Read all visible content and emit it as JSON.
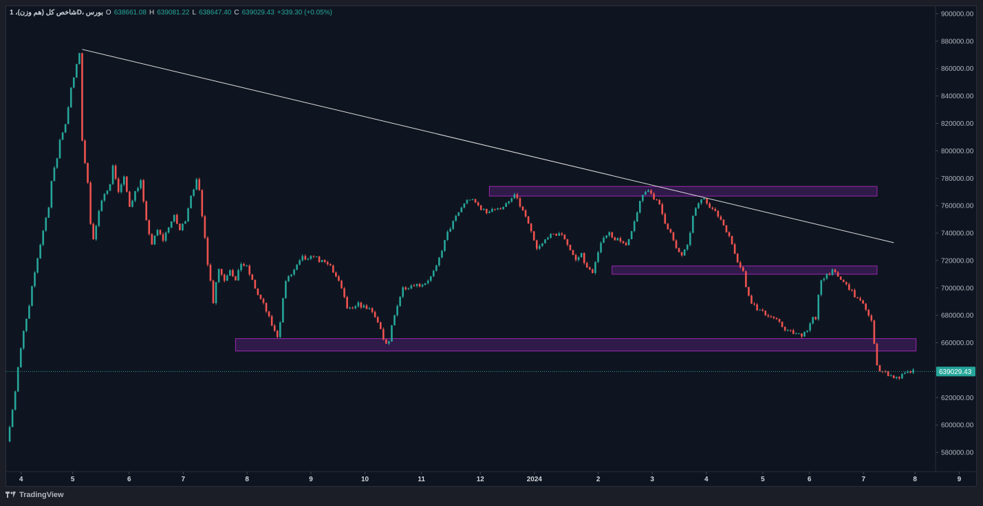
{
  "header": {
    "symbol": "شاخص کل (هم وزن)، 1D، بورس",
    "open_label": "O",
    "open": "638661.08",
    "high_label": "H",
    "high": "639081.22",
    "low_label": "L",
    "low": "638647.40",
    "close_label": "C",
    "close": "639029.43",
    "change": "+339.30 (+0.05%)"
  },
  "footer": {
    "brand": "TradingView"
  },
  "colors": {
    "up": "#26a69a",
    "down": "#ef5350",
    "zone_fill": "#4a1f6e",
    "zone_border": "#9c27b0",
    "trendline": "#e0e0e0",
    "price_tag": "#26a69a"
  },
  "chart_data": {
    "type": "candlestick",
    "x_ticks": [
      "4",
      "5",
      "6",
      "7",
      "8",
      "9",
      "10",
      "11",
      "12",
      "2024",
      "2",
      "3",
      "4",
      "5",
      "6",
      "7",
      "8",
      "9"
    ],
    "y_ticks": [
      "900000.00",
      "880000.00",
      "860000.00",
      "840000.00",
      "820000.00",
      "800000.00",
      "780000.00",
      "760000.00",
      "740000.00",
      "720000.00",
      "700000.00",
      "680000.00",
      "660000.00",
      "640000.00",
      "620000.00",
      "600000.00",
      "580000.00"
    ],
    "ylim": [
      566000,
      906000
    ],
    "last_price": 639029.43,
    "last_price_label": "639029.43",
    "path_points": [
      [
        0,
        588000
      ],
      [
        2,
        612000
      ],
      [
        3,
        625000
      ],
      [
        4,
        642000
      ],
      [
        6,
        668000
      ],
      [
        8,
        686000
      ],
      [
        9,
        700000
      ],
      [
        11,
        722000
      ],
      [
        13,
        742000
      ],
      [
        15,
        760000
      ],
      [
        16,
        778000
      ],
      [
        18,
        795000
      ],
      [
        19,
        808000
      ],
      [
        21,
        820000
      ],
      [
        23,
        845000
      ],
      [
        25,
        862000
      ],
      [
        26,
        872000
      ],
      [
        27,
        808000
      ],
      [
        28,
        790000
      ],
      [
        29,
        778000
      ],
      [
        30,
        748000
      ],
      [
        31,
        735000
      ],
      [
        33,
        755000
      ],
      [
        35,
        770000
      ],
      [
        37,
        775000
      ],
      [
        38,
        790000
      ],
      [
        40,
        770000
      ],
      [
        42,
        780000
      ],
      [
        44,
        760000
      ],
      [
        46,
        770000
      ],
      [
        48,
        778000
      ],
      [
        49,
        762000
      ],
      [
        50,
        748000
      ],
      [
        52,
        732000
      ],
      [
        54,
        742000
      ],
      [
        56,
        735000
      ],
      [
        58,
        745000
      ],
      [
        60,
        752000
      ],
      [
        62,
        742000
      ],
      [
        64,
        750000
      ],
      [
        66,
        768000
      ],
      [
        68,
        778000
      ],
      [
        69,
        770000
      ],
      [
        70,
        752000
      ],
      [
        71,
        738000
      ],
      [
        72,
        718000
      ],
      [
        73,
        705000
      ],
      [
        74,
        690000
      ],
      [
        75,
        705000
      ],
      [
        76,
        714000
      ],
      [
        78,
        706000
      ],
      [
        80,
        714000
      ],
      [
        82,
        705000
      ],
      [
        84,
        718000
      ],
      [
        86,
        715000
      ],
      [
        88,
        705000
      ],
      [
        90,
        695000
      ],
      [
        92,
        688000
      ],
      [
        94,
        678000
      ],
      [
        96,
        668000
      ],
      [
        97,
        665000
      ],
      [
        98,
        676000
      ],
      [
        99,
        692000
      ],
      [
        100,
        705000
      ],
      [
        102,
        710000
      ],
      [
        104,
        716000
      ],
      [
        106,
        722000
      ],
      [
        108,
        720000
      ],
      [
        110,
        724000
      ],
      [
        112,
        720000
      ],
      [
        114,
        718000
      ],
      [
        116,
        716000
      ],
      [
        118,
        708000
      ],
      [
        120,
        700000
      ],
      [
        122,
        685000
      ],
      [
        124,
        684000
      ],
      [
        126,
        688000
      ],
      [
        128,
        686000
      ],
      [
        130,
        685000
      ],
      [
        132,
        680000
      ],
      [
        134,
        670000
      ],
      [
        135,
        662000
      ],
      [
        136,
        658000
      ],
      [
        137,
        660000
      ],
      [
        138,
        672000
      ],
      [
        140,
        688000
      ],
      [
        142,
        700000
      ],
      [
        144,
        701000
      ],
      [
        146,
        703000
      ],
      [
        148,
        702000
      ],
      [
        150,
        704000
      ],
      [
        152,
        708000
      ],
      [
        154,
        715000
      ],
      [
        156,
        728000
      ],
      [
        158,
        740000
      ],
      [
        160,
        748000
      ],
      [
        162,
        755000
      ],
      [
        164,
        762000
      ],
      [
        166,
        765000
      ],
      [
        168,
        762000
      ],
      [
        170,
        758000
      ],
      [
        172,
        755000
      ],
      [
        174,
        758000
      ],
      [
        176,
        757000
      ],
      [
        178,
        760000
      ],
      [
        180,
        762000
      ],
      [
        182,
        768000
      ],
      [
        184,
        760000
      ],
      [
        186,
        752000
      ],
      [
        188,
        740000
      ],
      [
        190,
        728000
      ],
      [
        192,
        732000
      ],
      [
        194,
        738000
      ],
      [
        196,
        738000
      ],
      [
        198,
        740000
      ],
      [
        200,
        736000
      ],
      [
        202,
        728000
      ],
      [
        204,
        720000
      ],
      [
        206,
        725000
      ],
      [
        208,
        714000
      ],
      [
        210,
        712000
      ],
      [
        212,
        725000
      ],
      [
        214,
        738000
      ],
      [
        216,
        740000
      ],
      [
        218,
        736000
      ],
      [
        220,
        735000
      ],
      [
        222,
        730000
      ],
      [
        224,
        740000
      ],
      [
        226,
        756000
      ],
      [
        228,
        768000
      ],
      [
        230,
        772000
      ],
      [
        232,
        766000
      ],
      [
        234,
        760000
      ],
      [
        236,
        748000
      ],
      [
        238,
        740000
      ],
      [
        240,
        728000
      ],
      [
        242,
        724000
      ],
      [
        244,
        730000
      ],
      [
        246,
        752000
      ],
      [
        248,
        762000
      ],
      [
        250,
        766000
      ],
      [
        252,
        760000
      ],
      [
        254,
        755000
      ],
      [
        256,
        750000
      ],
      [
        258,
        742000
      ],
      [
        260,
        732000
      ],
      [
        262,
        720000
      ],
      [
        264,
        712000
      ],
      [
        265,
        700000
      ],
      [
        267,
        690000
      ],
      [
        269,
        685000
      ],
      [
        271,
        682000
      ],
      [
        273,
        680000
      ],
      [
        275,
        678000
      ],
      [
        277,
        674000
      ],
      [
        279,
        670000
      ],
      [
        281,
        668000
      ],
      [
        283,
        666000
      ],
      [
        285,
        666000
      ],
      [
        287,
        670000
      ],
      [
        289,
        678000
      ],
      [
        290,
        676000
      ],
      [
        291,
        694000
      ],
      [
        292,
        706000
      ],
      [
        294,
        710000
      ],
      [
        296,
        712000
      ],
      [
        298,
        708000
      ],
      [
        300,
        704000
      ],
      [
        302,
        700000
      ],
      [
        304,
        694000
      ],
      [
        306,
        690000
      ],
      [
        308,
        685000
      ],
      [
        310,
        676000
      ],
      [
        311,
        658000
      ],
      [
        312,
        645000
      ],
      [
        313,
        640000
      ],
      [
        315,
        638000
      ],
      [
        317,
        636000
      ],
      [
        319,
        634000
      ],
      [
        321,
        636000
      ],
      [
        323,
        638000
      ],
      [
        325,
        639000
      ]
    ],
    "zones": [
      {
        "x0": 173,
        "x1": 312,
        "y0": 767000,
        "y1": 774000
      },
      {
        "x0": 217,
        "x1": 312,
        "y0": 710000,
        "y1": 716000
      },
      {
        "x0": 82,
        "x1": 326,
        "y0": 654000,
        "y1": 663000
      }
    ],
    "trendline": [
      [
        27,
        874000
      ],
      [
        318,
        733000
      ]
    ]
  }
}
